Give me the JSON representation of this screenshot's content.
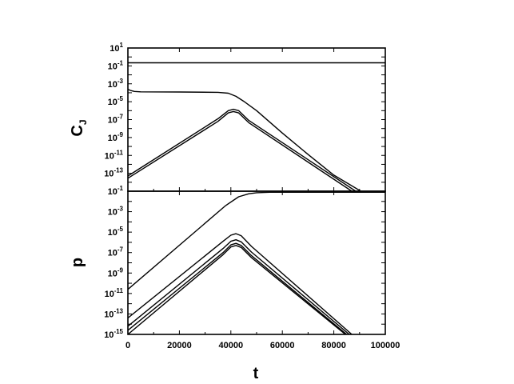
{
  "chart_data": [
    {
      "type": "line",
      "panel": "top",
      "ylabel": "C",
      "ylabel_sub": "J",
      "xlabel": "",
      "yscale": "log",
      "xlim": [
        0,
        100000
      ],
      "ylim_exp": [
        -15,
        1
      ],
      "y_ticks": [
        {
          "exp": 1,
          "base": "10",
          "sup": "1"
        },
        {
          "exp": -1,
          "base": "10",
          "sup": "-1"
        },
        {
          "exp": -3,
          "base": "10",
          "sup": "-3"
        },
        {
          "exp": -5,
          "base": "10",
          "sup": "-5"
        },
        {
          "exp": -7,
          "base": "10",
          "sup": "-7"
        },
        {
          "exp": -9,
          "base": "10",
          "sup": "-9"
        },
        {
          "exp": -11,
          "base": "10",
          "sup": "-11"
        },
        {
          "exp": -13,
          "base": "10",
          "sup": "-13"
        }
      ],
      "series": [
        {
          "x": [
            0,
            100000
          ],
          "log10_y": [
            -0.65,
            -0.65
          ]
        },
        {
          "x": [
            0,
            1000,
            2500,
            5000,
            20000,
            35000,
            39000,
            42000,
            45000,
            50000,
            60000,
            70000,
            80000,
            90500
          ],
          "log10_y": [
            -3.6,
            -3.75,
            -3.85,
            -3.9,
            -3.92,
            -3.95,
            -4.05,
            -4.4,
            -4.95,
            -6.0,
            -8.5,
            -10.9,
            -13.2,
            -15
          ]
        },
        {
          "x": [
            0,
            35000,
            39000,
            41000,
            43000,
            47000,
            88500
          ],
          "log10_y": [
            -13.3,
            -6.9,
            -6.0,
            -5.85,
            -6.0,
            -7.1,
            -15
          ]
        },
        {
          "x": [
            0,
            35000,
            39000,
            41000,
            43000,
            47000,
            87000
          ],
          "log10_y": [
            -13.55,
            -7.2,
            -6.25,
            -6.1,
            -6.25,
            -7.35,
            -15
          ]
        }
      ]
    },
    {
      "type": "line",
      "panel": "bottom",
      "ylabel": "p",
      "xlabel": "t",
      "yscale": "log",
      "xlim": [
        0,
        100000
      ],
      "ylim_exp": [
        -15,
        -1
      ],
      "y_ticks": [
        {
          "exp": -1,
          "base": "10",
          "sup": "-1"
        },
        {
          "exp": -3,
          "base": "10",
          "sup": "-3"
        },
        {
          "exp": -5,
          "base": "10",
          "sup": "-5"
        },
        {
          "exp": -7,
          "base": "10",
          "sup": "-7"
        },
        {
          "exp": -9,
          "base": "10",
          "sup": "-9"
        },
        {
          "exp": -11,
          "base": "10",
          "sup": "-11"
        },
        {
          "exp": -13,
          "base": "10",
          "sup": "-13"
        },
        {
          "exp": -15,
          "base": "10",
          "sup": "-15"
        }
      ],
      "x_ticks": [
        {
          "value": 0,
          "label": "0"
        },
        {
          "value": 20000,
          "label": "20000"
        },
        {
          "value": 40000,
          "label": "40000"
        },
        {
          "value": 60000,
          "label": "60000"
        },
        {
          "value": 80000,
          "label": "80000"
        },
        {
          "value": 100000,
          "label": "100000"
        }
      ],
      "series": [
        {
          "x": [
            0,
            38000,
            43000,
            47000,
            50000,
            55000,
            100000
          ],
          "log10_y": [
            -10.6,
            -2.4,
            -1.55,
            -1.25,
            -1.15,
            -1.1,
            -1.1
          ]
        },
        {
          "x": [
            0,
            37000,
            40000,
            42000,
            44000,
            48000,
            87000
          ],
          "log10_y": [
            -13.4,
            -5.9,
            -5.3,
            -5.15,
            -5.35,
            -6.4,
            -15
          ]
        },
        {
          "x": [
            0,
            37000,
            40000,
            42000,
            44000,
            48000,
            86000
          ],
          "log10_y": [
            -14.2,
            -6.6,
            -5.9,
            -5.75,
            -5.95,
            -6.95,
            -15
          ]
        },
        {
          "x": [
            0,
            37000,
            40000,
            42000,
            44000,
            48000,
            85000
          ],
          "log10_y": [
            -14.6,
            -7.0,
            -6.25,
            -6.1,
            -6.3,
            -7.3,
            -15
          ]
        },
        {
          "x": [
            0,
            37000,
            40000,
            42000,
            44000,
            48000,
            84500
          ],
          "log10_y": [
            -15,
            -7.2,
            -6.45,
            -6.3,
            -6.5,
            -7.5,
            -15
          ]
        }
      ]
    }
  ]
}
